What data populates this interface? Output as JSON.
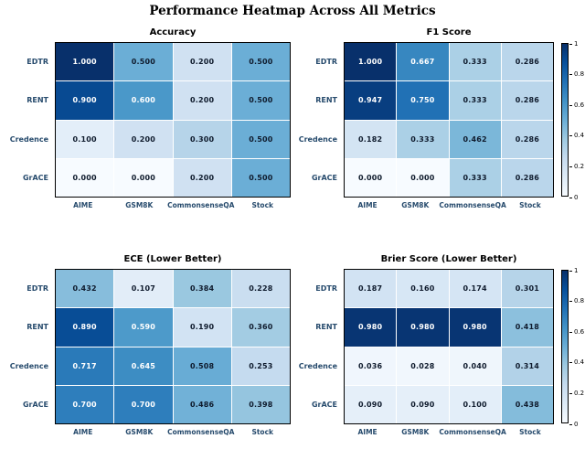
{
  "figure_title": "Performance Heatmap Across All Metrics",
  "colorbar": {
    "min": 0,
    "max": 1,
    "ticks": [
      "1",
      "0.8",
      "0.6",
      "0.4",
      "0.2",
      "0"
    ]
  },
  "colors": {
    "tick_label": "#274b6d",
    "cell_text_dark": "#0f1b2d",
    "cell_text_light": "#ffffff",
    "cmap_name": "Blues",
    "cmap_stops": [
      {
        "p": 0.0,
        "c": "#f7fbff"
      },
      {
        "p": 0.125,
        "c": "#deebf7"
      },
      {
        "p": 0.25,
        "c": "#c6dbef"
      },
      {
        "p": 0.375,
        "c": "#9ecae1"
      },
      {
        "p": 0.5,
        "c": "#6baed6"
      },
      {
        "p": 0.625,
        "c": "#4292c6"
      },
      {
        "p": 0.75,
        "c": "#2171b5"
      },
      {
        "p": 0.875,
        "c": "#08519c"
      },
      {
        "p": 1.0,
        "c": "#08306b"
      }
    ]
  },
  "chart_data": [
    {
      "type": "heatmap",
      "title": "Accuracy",
      "rows": [
        "EDTR",
        "RENT",
        "Credence",
        "GrACE"
      ],
      "cols": [
        "AIME",
        "GSM8K",
        "CommonsenseQA",
        "Stock"
      ],
      "vmin": 0,
      "vmax": 1,
      "value_decimals": 3,
      "values": [
        [
          1.0,
          0.5,
          0.2,
          0.5
        ],
        [
          0.9,
          0.6,
          0.2,
          0.5
        ],
        [
          0.1,
          0.2,
          0.3,
          0.5
        ],
        [
          0.0,
          0.0,
          0.2,
          0.5
        ]
      ]
    },
    {
      "type": "heatmap",
      "title": "F1 Score",
      "rows": [
        "EDTR",
        "RENT",
        "Credence",
        "GrACE"
      ],
      "cols": [
        "AIME",
        "GSM8K",
        "CommonsenseQA",
        "Stock"
      ],
      "vmin": 0,
      "vmax": 1,
      "value_decimals": 3,
      "values": [
        [
          1.0,
          0.667,
          0.333,
          0.286
        ],
        [
          0.947,
          0.75,
          0.333,
          0.286
        ],
        [
          0.182,
          0.333,
          0.462,
          0.286
        ],
        [
          0.0,
          0.0,
          0.333,
          0.286
        ]
      ]
    },
    {
      "type": "heatmap",
      "title": "ECE (Lower Better)",
      "rows": [
        "EDTR",
        "RENT",
        "Credence",
        "GrACE"
      ],
      "cols": [
        "AIME",
        "GSM8K",
        "CommonsenseQA",
        "Stock"
      ],
      "vmin": 0,
      "vmax": 1,
      "value_decimals": 3,
      "values": [
        [
          0.432,
          0.107,
          0.384,
          0.228
        ],
        [
          0.89,
          0.59,
          0.19,
          0.36
        ],
        [
          0.717,
          0.645,
          0.508,
          0.253
        ],
        [
          0.7,
          0.7,
          0.486,
          0.398
        ]
      ]
    },
    {
      "type": "heatmap",
      "title": "Brier Score (Lower Better)",
      "rows": [
        "EDTR",
        "RENT",
        "Credence",
        "GrACE"
      ],
      "cols": [
        "AIME",
        "GSM8K",
        "CommonsenseQA",
        "Stock"
      ],
      "vmin": 0,
      "vmax": 1,
      "value_decimals": 3,
      "values": [
        [
          0.187,
          0.16,
          0.174,
          0.301
        ],
        [
          0.98,
          0.98,
          0.98,
          0.418
        ],
        [
          0.036,
          0.028,
          0.04,
          0.314
        ],
        [
          0.09,
          0.09,
          0.1,
          0.438
        ]
      ]
    }
  ]
}
